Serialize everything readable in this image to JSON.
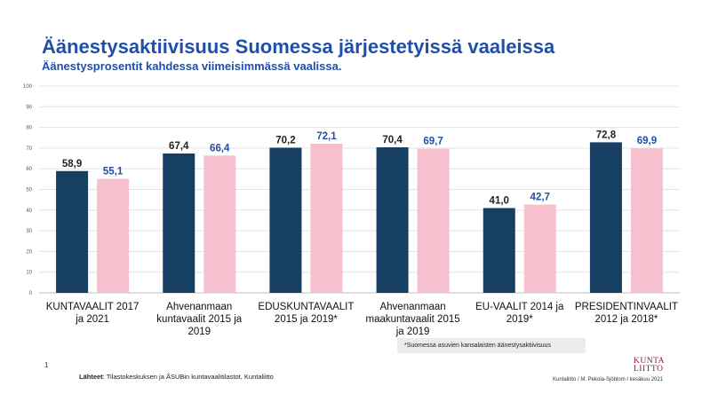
{
  "header": {
    "title": "Äänestysaktiivisuus Suomessa järjestetyissä vaaleissa",
    "subtitle": "Äänestysprosentit kahdessa viimeisimmässä vaalissa."
  },
  "footnote": "*Suomessa asuvien kansalaisten äänestysaktiivisuus",
  "page_number": "1",
  "source": {
    "label": "Lähteet",
    "text": ": Tilastokeskuksen ja ÅSUBin kuntavaalitilastot, Kuntaliitto"
  },
  "logo": {
    "line1": "KUNTA",
    "line2": "LIITTO"
  },
  "credit": "Kuntaliitto / M. Pekola-Sjöblom  / kesäkuu 2021",
  "colors": {
    "accent": "#1f4fa8",
    "series1": "#163f62",
    "series2": "#f8c0cf",
    "label1": "#222222",
    "label2": "#1f4fa8"
  },
  "chart_data": {
    "type": "bar",
    "categories": [
      [
        "KUNTAVAALIT 2017",
        "ja 2021"
      ],
      [
        "Ahvenanmaan",
        "kuntavaalit 2015 ja",
        "2019"
      ],
      [
        "EDUSKUNTAVAALIT",
        "2015 ja 2019*"
      ],
      [
        "Ahvenanmaan",
        "maakuntavaalit 2015",
        "ja 2019"
      ],
      [
        "EU-VAALIT 2014 ja",
        "2019*"
      ],
      [
        "PRESIDENTINVAALIT",
        "2012 ja 2018*"
      ]
    ],
    "series": [
      {
        "values": [
          58.9,
          67.4,
          70.2,
          70.4,
          41.0,
          72.8
        ],
        "labels": [
          "58,9",
          "67,4",
          "70,2",
          "70,4",
          "41,0",
          "72,8"
        ]
      },
      {
        "values": [
          55.1,
          66.4,
          72.1,
          69.7,
          42.7,
          69.9
        ],
        "labels": [
          "55,1",
          "66,4",
          "72,1",
          "69,7",
          "42,7",
          "69,9"
        ]
      }
    ],
    "yticks": [
      "0",
      "10",
      "20",
      "30",
      "40",
      "50",
      "60",
      "70",
      "80",
      "90",
      "100"
    ],
    "ylim": [
      0,
      100
    ],
    "grid": true,
    "legend": "none"
  }
}
